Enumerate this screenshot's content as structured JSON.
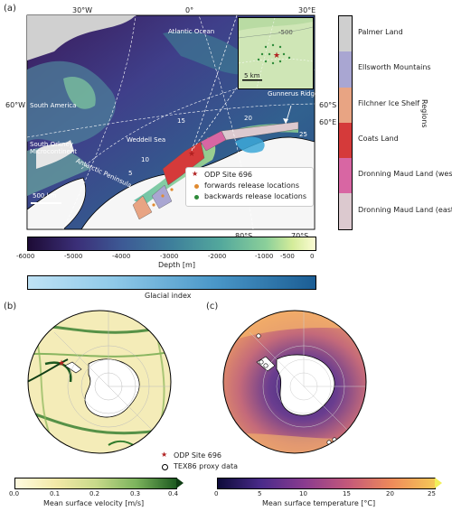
{
  "panel_a": {
    "letter": "(a)",
    "top_lon_labels": [
      "30°W",
      "0°",
      "30°E"
    ],
    "side_labels": {
      "left": "60°W",
      "right_upper": "60°S",
      "right_lower": "60°E"
    },
    "bottom_lat_labels": [
      "80°S",
      "70°S"
    ],
    "place_labels": {
      "atlantic": "Atlantic Ocean",
      "south_america": "South America",
      "south_orkney": "South Orkney\nMicrocontinent",
      "antarctic_peninsula": "Antarctic Peninsula",
      "weddell": "Weddell Sea",
      "gunnerus": "Gunnerus Ridge"
    },
    "numbers_on_map": [
      "5",
      "10",
      "15",
      "20",
      "25"
    ],
    "scale_bar": "500 km",
    "inset": {
      "contour_label": "-500",
      "scale_bar": "5 km"
    },
    "legend": [
      {
        "label": "ODP Site 696",
        "color": "#b02020",
        "marker": "star"
      },
      {
        "label": "forwards release locations",
        "color": "#e08a30",
        "marker": "dot"
      },
      {
        "label": "backwards release locations",
        "color": "#2e8b3a",
        "marker": "dot"
      }
    ]
  },
  "regions": {
    "title": "Regions",
    "items": [
      {
        "label": "Palmer Land",
        "color": "#cfcfcf"
      },
      {
        "label": "Ellsworth Mountains",
        "color": "#a9a6d2"
      },
      {
        "label": "Filchner Ice Shelf",
        "color": "#e8a483"
      },
      {
        "label": "Coats Land",
        "color": "#d53a3a"
      },
      {
        "label": "Dronning Maud Land (west)",
        "color": "#d866a3"
      },
      {
        "label": "Dronning Maud Land (east)",
        "color": "#dcc9cf"
      }
    ]
  },
  "depth_colorbar": {
    "label": "Depth [m]",
    "ticks": [
      "-6000",
      "-5000",
      "-4000",
      "-3000",
      "-2000",
      "-1000",
      "-500",
      "0"
    ]
  },
  "glacial_colorbar": {
    "label": "Glacial index"
  },
  "panel_b": {
    "letter": "(b)",
    "legend": [
      {
        "label": "ODP Site 696",
        "marker": "star",
        "color": "#b02020"
      },
      {
        "label": "TEX86 proxy data",
        "marker": "circle",
        "color": "#000000"
      }
    ],
    "colorbar": {
      "label": "Mean surface velocity [m/s]",
      "ticks": [
        "0.0",
        "0.1",
        "0.2",
        "0.3",
        "0.4"
      ]
    }
  },
  "panel_c": {
    "letter": "(c)",
    "colorbar": {
      "label": "Mean surface temperature [°C]",
      "ticks": [
        "0",
        "5",
        "10",
        "15",
        "20",
        "25"
      ]
    }
  }
}
